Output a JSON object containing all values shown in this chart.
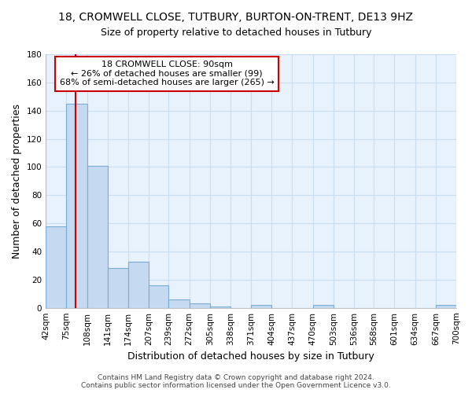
{
  "title1": "18, CROMWELL CLOSE, TUTBURY, BURTON-ON-TRENT, DE13 9HZ",
  "title2": "Size of property relative to detached houses in Tutbury",
  "xlabel": "Distribution of detached houses by size in Tutbury",
  "ylabel": "Number of detached properties",
  "bin_edges": [
    42,
    75,
    108,
    141,
    174,
    207,
    239,
    272,
    305,
    338,
    371,
    404,
    437,
    470,
    503,
    536,
    568,
    601,
    634,
    667,
    700
  ],
  "bar_heights": [
    58,
    145,
    101,
    28,
    33,
    16,
    6,
    3,
    1,
    0,
    2,
    0,
    0,
    2,
    0,
    0,
    0,
    0,
    0,
    2
  ],
  "bar_color": "#c5d9f0",
  "bar_edgecolor": "#7aadd4",
  "bar_linewidth": 0.8,
  "property_size": 90,
  "red_line_color": "#cc0000",
  "annotation_line1": "18 CROMWELL CLOSE: 90sqm",
  "annotation_line2": "← 26% of detached houses are smaller (99)",
  "annotation_line3": "68% of semi-detached houses are larger (265) →",
  "annotation_box_color": "#ffffff",
  "annotation_box_edgecolor": "#cc0000",
  "ylim": [
    0,
    180
  ],
  "yticks": [
    0,
    20,
    40,
    60,
    80,
    100,
    120,
    140,
    160,
    180
  ],
  "grid_color": "#c8ddf0",
  "background_color": "#e8f2fc",
  "footer_text": "Contains HM Land Registry data © Crown copyright and database right 2024.\nContains public sector information licensed under the Open Government Licence v3.0.",
  "title1_fontsize": 10,
  "title2_fontsize": 9,
  "xlabel_fontsize": 9,
  "ylabel_fontsize": 9,
  "tick_fontsize": 7.5,
  "annotation_fontsize": 8,
  "footer_fontsize": 6.5
}
